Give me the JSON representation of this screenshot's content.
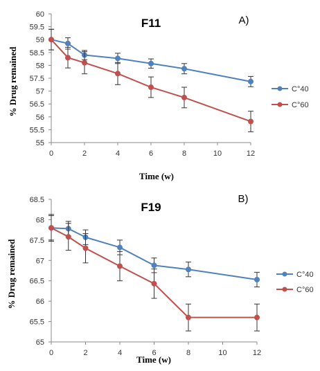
{
  "chart_data": [
    {
      "type": "line",
      "panel_label": "A)",
      "title": "F11",
      "xlabel": "Time (w)",
      "ylabel": "% Drug remained",
      "x": [
        0,
        1,
        2,
        4,
        6,
        8,
        12
      ],
      "xlim": [
        0,
        12
      ],
      "xticks": [
        "0",
        "2",
        "4",
        "6",
        "8",
        "10",
        "12"
      ],
      "ylim": [
        55,
        60
      ],
      "yticks": [
        "55",
        "55.5",
        "56",
        "56.5",
        "57",
        "57.5",
        "58",
        "58.5",
        "59",
        "59.5",
        "60"
      ],
      "grid": false,
      "legend_position": "right",
      "series": [
        {
          "name": "C°40",
          "color": "#4f81bd",
          "values": [
            59.0,
            58.85,
            58.4,
            58.27,
            58.07,
            57.87,
            57.37
          ],
          "errors": [
            0.4,
            0.22,
            0.18,
            0.2,
            0.18,
            0.2,
            0.2
          ]
        },
        {
          "name": "C°60",
          "color": "#c0504d",
          "values": [
            59.0,
            58.3,
            58.1,
            57.68,
            57.15,
            56.75,
            55.82
          ],
          "errors": [
            0.4,
            0.4,
            0.43,
            0.43,
            0.4,
            0.4,
            0.4
          ]
        }
      ]
    },
    {
      "type": "line",
      "panel_label": "B)",
      "title": "F19",
      "xlabel": "Time (w)",
      "ylabel": "% Drug remained",
      "x": [
        0,
        1,
        2,
        4,
        6,
        8,
        12
      ],
      "xlim": [
        0,
        12
      ],
      "xticks": [
        "0",
        "2",
        "4",
        "6",
        "8",
        "10",
        "12"
      ],
      "ylim": [
        65,
        68.5
      ],
      "yticks": [
        "65",
        "65.5",
        "66",
        "66.5",
        "67",
        "67.5",
        "68",
        "68.5"
      ],
      "grid": false,
      "legend_position": "right",
      "series": [
        {
          "name": "C°40",
          "color": "#4f81bd",
          "values": [
            67.8,
            67.78,
            67.57,
            67.32,
            66.88,
            66.78,
            66.53
          ],
          "errors": [
            0.3,
            0.18,
            0.18,
            0.18,
            0.18,
            0.18,
            0.18
          ]
        },
        {
          "name": "C°60",
          "color": "#c0504d",
          "values": [
            67.8,
            67.58,
            67.3,
            66.86,
            66.43,
            65.6,
            65.6
          ],
          "errors": [
            0.33,
            0.33,
            0.36,
            0.36,
            0.36,
            0.33,
            0.33
          ]
        }
      ]
    }
  ]
}
